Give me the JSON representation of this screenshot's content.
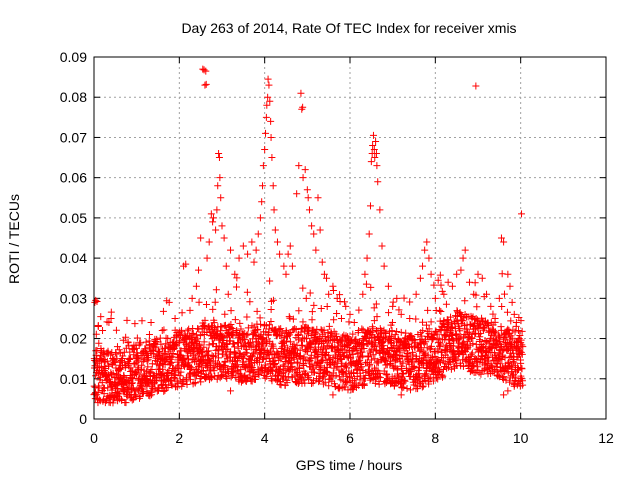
{
  "chart_data": {
    "type": "scatter",
    "title": "Day 263 of 2014, Rate Of TEC Index for receiver xmis",
    "xlabel": "GPS time / hours",
    "ylabel": "ROTI / TECUs",
    "xlim": [
      0,
      12
    ],
    "ylim": [
      0,
      0.09
    ],
    "xticks": [
      0,
      2,
      4,
      6,
      8,
      10,
      12
    ],
    "xtick_labels": [
      "0",
      "2",
      "4",
      "6",
      "8",
      "10",
      "12"
    ],
    "yticks": [
      0,
      0.01,
      0.02,
      0.03,
      0.04,
      0.05,
      0.06,
      0.07,
      0.08,
      0.09
    ],
    "ytick_labels": [
      "0",
      "0.01",
      "0.02",
      "0.03",
      "0.04",
      "0.05",
      "0.06",
      "0.07",
      "0.08",
      "0.09"
    ],
    "grid": true,
    "marker": "+",
    "marker_color": "#ff0000",
    "baseline": [
      [
        0.0,
        0.011
      ],
      [
        0.5,
        0.01
      ],
      [
        1.0,
        0.012
      ],
      [
        1.5,
        0.013
      ],
      [
        2.0,
        0.015
      ],
      [
        2.5,
        0.016
      ],
      [
        3.0,
        0.017
      ],
      [
        3.5,
        0.016
      ],
      [
        4.0,
        0.017
      ],
      [
        4.5,
        0.015
      ],
      [
        5.0,
        0.016
      ],
      [
        5.5,
        0.015
      ],
      [
        6.0,
        0.014
      ],
      [
        6.5,
        0.016
      ],
      [
        7.0,
        0.015
      ],
      [
        7.5,
        0.014
      ],
      [
        8.0,
        0.016
      ],
      [
        8.5,
        0.02
      ],
      [
        9.0,
        0.018
      ],
      [
        9.5,
        0.017
      ],
      [
        10.0,
        0.014
      ]
    ],
    "series": [
      {
        "name": "ROTI",
        "points": [
          [
            0.02,
            0.029
          ],
          [
            0.04,
            0.0295
          ],
          [
            0.07,
            0.0292
          ],
          [
            0.1,
            0.023
          ],
          [
            0.2,
            0.022
          ],
          [
            0.35,
            0.024
          ],
          [
            0.4,
            0.025
          ],
          [
            0.55,
            0.018
          ],
          [
            0.8,
            0.019
          ],
          [
            1.0,
            0.015
          ],
          [
            1.3,
            0.021
          ],
          [
            1.6,
            0.022
          ],
          [
            1.9,
            0.025
          ],
          [
            2.1,
            0.038
          ],
          [
            2.15,
            0.0385
          ],
          [
            2.25,
            0.027
          ],
          [
            2.3,
            0.03
          ],
          [
            2.4,
            0.033
          ],
          [
            2.45,
            0.037
          ],
          [
            2.5,
            0.045
          ],
          [
            2.55,
            0.087
          ],
          [
            2.58,
            0.0868
          ],
          [
            2.62,
            0.0865
          ],
          [
            2.6,
            0.083
          ],
          [
            2.63,
            0.0832
          ],
          [
            2.65,
            0.04
          ],
          [
            2.7,
            0.044
          ],
          [
            2.75,
            0.051
          ],
          [
            2.78,
            0.049
          ],
          [
            2.8,
            0.05
          ],
          [
            2.85,
            0.047
          ],
          [
            2.88,
            0.052
          ],
          [
            2.9,
            0.058
          ],
          [
            2.92,
            0.066
          ],
          [
            2.94,
            0.065
          ],
          [
            2.95,
            0.06
          ],
          [
            2.97,
            0.055
          ],
          [
            3.0,
            0.048
          ],
          [
            3.05,
            0.045
          ],
          [
            3.1,
            0.038
          ],
          [
            3.2,
            0.042
          ],
          [
            3.3,
            0.036
          ],
          [
            3.4,
            0.04
          ],
          [
            3.5,
            0.043
          ],
          [
            3.6,
            0.041
          ],
          [
            3.7,
            0.044
          ],
          [
            3.75,
            0.039
          ],
          [
            3.8,
            0.042
          ],
          [
            3.85,
            0.046
          ],
          [
            3.9,
            0.05
          ],
          [
            3.93,
            0.054
          ],
          [
            3.95,
            0.058
          ],
          [
            3.97,
            0.063
          ],
          [
            4.0,
            0.067
          ],
          [
            4.02,
            0.071
          ],
          [
            4.04,
            0.075
          ],
          [
            4.05,
            0.078
          ],
          [
            4.07,
            0.08
          ],
          [
            4.08,
            0.0845
          ],
          [
            4.1,
            0.083
          ],
          [
            4.12,
            0.079
          ],
          [
            4.14,
            0.074
          ],
          [
            4.15,
            0.07
          ],
          [
            4.17,
            0.065
          ],
          [
            4.2,
            0.058
          ],
          [
            4.22,
            0.052
          ],
          [
            4.25,
            0.047
          ],
          [
            4.3,
            0.044
          ],
          [
            4.35,
            0.041
          ],
          [
            4.45,
            0.038
          ],
          [
            4.5,
            0.036
          ],
          [
            4.55,
            0.041
          ],
          [
            4.6,
            0.043
          ],
          [
            4.65,
            0.038
          ],
          [
            4.75,
            0.056
          ],
          [
            4.8,
            0.063
          ],
          [
            4.85,
            0.081
          ],
          [
            4.87,
            0.077
          ],
          [
            4.89,
            0.0775
          ],
          [
            4.9,
            0.06
          ],
          [
            4.95,
            0.062
          ],
          [
            5.0,
            0.057
          ],
          [
            5.02,
            0.055
          ],
          [
            5.05,
            0.052
          ],
          [
            5.1,
            0.048
          ],
          [
            5.15,
            0.046
          ],
          [
            5.2,
            0.042
          ],
          [
            5.25,
            0.055
          ],
          [
            5.3,
            0.047
          ],
          [
            5.35,
            0.039
          ],
          [
            5.4,
            0.036
          ],
          [
            5.45,
            0.035
          ],
          [
            5.5,
            0.031
          ],
          [
            5.6,
            0.033
          ],
          [
            5.7,
            0.03
          ],
          [
            5.8,
            0.025
          ],
          [
            5.9,
            0.028
          ],
          [
            6.0,
            0.026
          ],
          [
            6.1,
            0.024
          ],
          [
            6.2,
            0.022
          ],
          [
            6.3,
            0.031
          ],
          [
            6.35,
            0.036
          ],
          [
            6.4,
            0.04
          ],
          [
            6.45,
            0.046
          ],
          [
            6.48,
            0.053
          ],
          [
            6.5,
            0.064
          ],
          [
            6.52,
            0.066
          ],
          [
            6.53,
            0.068
          ],
          [
            6.55,
            0.0705
          ],
          [
            6.57,
            0.067
          ],
          [
            6.58,
            0.065
          ],
          [
            6.6,
            0.069
          ],
          [
            6.62,
            0.066
          ],
          [
            6.63,
            0.063
          ],
          [
            6.65,
            0.059
          ],
          [
            6.7,
            0.052
          ],
          [
            6.75,
            0.043
          ],
          [
            6.8,
            0.038
          ],
          [
            6.9,
            0.033
          ],
          [
            7.0,
            0.028
          ],
          [
            7.2,
            0.026
          ],
          [
            7.4,
            0.025
          ],
          [
            7.55,
            0.031
          ],
          [
            7.65,
            0.035
          ],
          [
            7.7,
            0.038
          ],
          [
            7.75,
            0.042
          ],
          [
            7.8,
            0.044
          ],
          [
            7.85,
            0.04
          ],
          [
            7.9,
            0.036
          ],
          [
            8.0,
            0.03
          ],
          [
            8.1,
            0.027
          ],
          [
            8.2,
            0.031
          ],
          [
            8.3,
            0.034
          ],
          [
            8.4,
            0.033
          ],
          [
            8.5,
            0.036
          ],
          [
            8.6,
            0.037
          ],
          [
            8.65,
            0.04
          ],
          [
            8.7,
            0.042
          ],
          [
            8.8,
            0.034
          ],
          [
            8.9,
            0.031
          ],
          [
            8.95,
            0.0828
          ],
          [
            9.0,
            0.036
          ],
          [
            9.1,
            0.035
          ],
          [
            9.2,
            0.031
          ],
          [
            9.3,
            0.028
          ],
          [
            9.4,
            0.025
          ],
          [
            9.5,
            0.03
          ],
          [
            9.55,
            0.045
          ],
          [
            9.6,
            0.044
          ],
          [
            9.7,
            0.036
          ],
          [
            9.75,
            0.033
          ],
          [
            9.8,
            0.029
          ],
          [
            9.85,
            0.026
          ],
          [
            9.9,
            0.024
          ],
          [
            9.95,
            0.022
          ],
          [
            10.0,
            0.019
          ],
          [
            10.02,
            0.051
          ],
          [
            10.05,
            0.018
          ],
          [
            9.6,
            0.006
          ],
          [
            9.7,
            0.007
          ],
          [
            5.6,
            0.006
          ],
          [
            0.6,
            0.005
          ],
          [
            3.2,
            0.007
          ],
          [
            7.2,
            0.006
          ],
          [
            10.0,
            0.01
          ]
        ]
      }
    ]
  }
}
